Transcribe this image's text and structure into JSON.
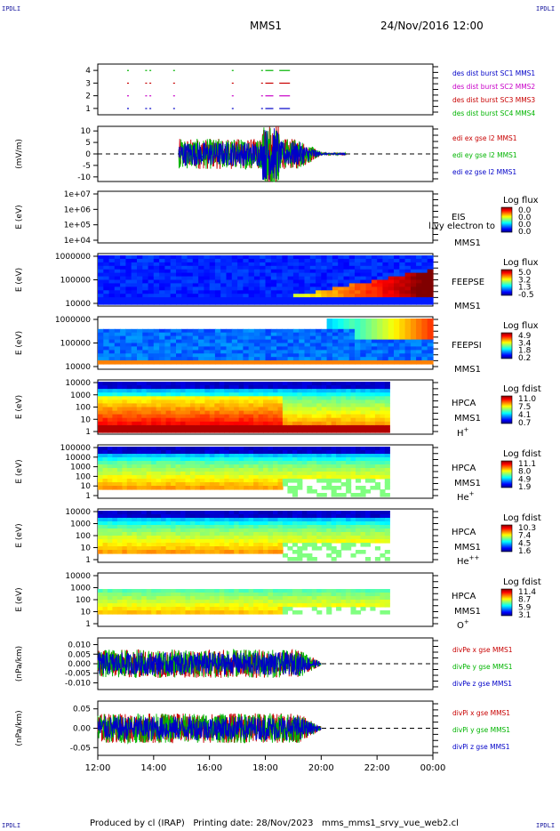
{
  "header": {
    "corner_tl": "IPDLI",
    "corner_tr": "IPDLI",
    "corner_bl": "IPDLI",
    "corner_br": "IPDLI",
    "spacecraft": "MMS1",
    "datetime": "24/Nov/2016 12:00"
  },
  "footer": {
    "text": "Produced by cl (IRAP)   Printing date: 28/Nov/2023   mms_mms1_srvy_vue_web2.cl"
  },
  "chart_data": [
    {
      "type": "scatter",
      "panel": "burst",
      "yticks": [
        "1",
        "2",
        "3",
        "4"
      ],
      "ylim": [
        0.5,
        4.5
      ],
      "legend": [
        {
          "label": "des dist burst SC1 MMS1",
          "color": "#0000c8"
        },
        {
          "label": "des dist burst SC2 MMS2",
          "color": "#c800c8"
        },
        {
          "label": "des dist burst SC3 MMS3",
          "color": "#c80000"
        },
        {
          "label": "des dist burst SC4 MMS4",
          "color": "#00b400"
        }
      ],
      "segments": [
        {
          "y": 4,
          "x": [
            13.05,
            13.7,
            13.85,
            14.7,
            16.8,
            17.85,
            18.0,
            18.5
          ],
          "color": "#00b400"
        },
        {
          "y": 3,
          "x": [
            13.05,
            13.7,
            13.85,
            14.7,
            16.8,
            17.85,
            18.0,
            18.5
          ],
          "color": "#c80000"
        },
        {
          "y": 2,
          "x": [
            13.05,
            13.7,
            13.85,
            14.7,
            16.8,
            17.85,
            18.0,
            18.5
          ],
          "color": "#c800c8"
        },
        {
          "y": 1,
          "x": [
            13.05,
            13.7,
            13.85,
            14.7,
            16.8,
            17.85,
            18.0,
            18.5
          ],
          "color": "#0000c8"
        }
      ]
    },
    {
      "type": "line",
      "panel": "edi",
      "ylabel": "(mV/m)",
      "yticks": [
        "10",
        "5",
        "0",
        "-5",
        "-10"
      ],
      "ylim": [
        -12,
        12
      ],
      "x_range": [
        14.9,
        20.9
      ],
      "legend": [
        {
          "label": "edi ex gse l2 MMS1",
          "color": "#c80000"
        },
        {
          "label": "edi ey gse l2 MMS1",
          "color": "#00b400"
        },
        {
          "label": "edi ez gse l2 MMS1",
          "color": "#0000c8"
        }
      ]
    },
    {
      "type": "heatmap",
      "panel": "eis",
      "ylabel": "E (eV)",
      "yticks": [
        "1e+07",
        "1e+06",
        "1e+05",
        "1e+04"
      ],
      "labels": [
        "EIS",
        "MMS1"
      ],
      "overlay_text": "l.vy electron to",
      "colorbar": {
        "title": "Log flux",
        "ticks": [
          "0.0",
          "0.0",
          "0.0",
          "0.0"
        ]
      }
    },
    {
      "type": "heatmap",
      "panel": "feepse",
      "ylabel": "E (eV)",
      "yticks": [
        "1000000",
        "100000",
        "10000"
      ],
      "labels": [
        "FEEPSE",
        "MMS1"
      ],
      "colorbar": {
        "title": "Log flux",
        "ticks": [
          "5.0",
          "3.2",
          "1.3",
          "-0.5"
        ]
      }
    },
    {
      "type": "heatmap",
      "panel": "feepsi",
      "ylabel": "E (eV)",
      "yticks": [
        "1000000",
        "100000",
        "10000"
      ],
      "labels": [
        "FEEPSI",
        "MMS1"
      ],
      "colorbar": {
        "title": "Log flux",
        "ticks": [
          "4.9",
          "3.4",
          "1.8",
          "0.2"
        ]
      }
    },
    {
      "type": "heatmap",
      "panel": "hpca_h",
      "ylabel": "E (eV)",
      "yticks": [
        "10000",
        "1000",
        "100",
        "10",
        "1"
      ],
      "labels": [
        "HPCA",
        "MMS1"
      ],
      "species": "H",
      "species_sup": "+",
      "colorbar": {
        "title": "Log fdist",
        "ticks": [
          "11.0",
          "7.5",
          "4.1",
          "0.7"
        ]
      }
    },
    {
      "type": "heatmap",
      "panel": "hpca_he",
      "ylabel": "E (eV)",
      "yticks": [
        "100000",
        "10000",
        "1000",
        "100",
        "10",
        "1"
      ],
      "labels": [
        "HPCA",
        "MMS1"
      ],
      "species": "He",
      "species_sup": "+",
      "colorbar": {
        "title": "Log fdist",
        "ticks": [
          "11.1",
          "8.0",
          "4.9",
          "1.9"
        ]
      }
    },
    {
      "type": "heatmap",
      "panel": "hpca_he2",
      "ylabel": "E (eV)",
      "yticks": [
        "10000",
        "1000",
        "100",
        "10",
        "1"
      ],
      "labels": [
        "HPCA",
        "MMS1"
      ],
      "species": "He",
      "species_sup": "++",
      "colorbar": {
        "title": "Log fdist",
        "ticks": [
          "10.3",
          "7.4",
          "4.5",
          "1.6"
        ]
      }
    },
    {
      "type": "heatmap",
      "panel": "hpca_o",
      "ylabel": "E (eV)",
      "yticks": [
        "10000",
        "1000",
        "100",
        "10",
        "1"
      ],
      "labels": [
        "HPCA",
        "MMS1"
      ],
      "species": "O",
      "species_sup": "+",
      "colorbar": {
        "title": "Log fdist",
        "ticks": [
          "11.4",
          "8.7",
          "5.9",
          "3.1"
        ]
      }
    },
    {
      "type": "line",
      "panel": "divpe",
      "ylabel": "(nPa/km)",
      "yticks": [
        "0.010",
        "0.005",
        "0.000",
        "-0.005",
        "-0.010"
      ],
      "ylim": [
        -0.0135,
        0.0135
      ],
      "x_range": [
        12.0,
        20.0
      ],
      "legend": [
        {
          "label": "divPe x gse MMS1",
          "color": "#c80000"
        },
        {
          "label": "divPe y gse MMS1",
          "color": "#00b400"
        },
        {
          "label": "divPe z gse MMS1",
          "color": "#0000c8"
        }
      ]
    },
    {
      "type": "line",
      "panel": "divpi",
      "ylabel": "(nPa/km)",
      "yticks": [
        "0.05",
        "0.00",
        "-0.05"
      ],
      "ylim": [
        -0.07,
        0.07
      ],
      "x_range": [
        12.0,
        20.0
      ],
      "legend": [
        {
          "label": "divPi x gse MMS1",
          "color": "#c80000"
        },
        {
          "label": "divPi y gse MMS1",
          "color": "#00b400"
        },
        {
          "label": "divPi z gse MMS1",
          "color": "#0000c8"
        }
      ]
    }
  ],
  "xaxis": {
    "ticks": [
      "12:00",
      "14:00",
      "16:00",
      "18:00",
      "20:00",
      "22:00",
      "00:00"
    ],
    "range_hours": [
      12,
      24
    ]
  }
}
